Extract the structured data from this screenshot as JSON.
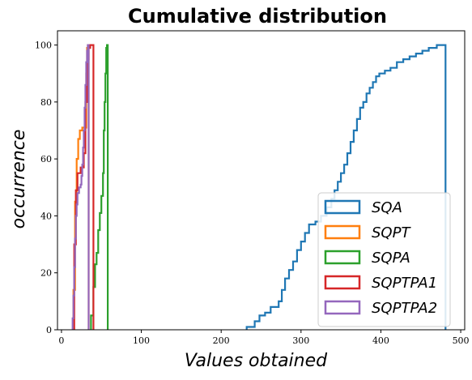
{
  "chart_data": {
    "type": "step",
    "title": "Cumulative distribution",
    "xlabel": "Values obtained",
    "ylabel": "occurrence",
    "xlim": [
      -5,
      505
    ],
    "ylim": [
      0,
      105
    ],
    "xticks": [
      0,
      100,
      200,
      300,
      400,
      500
    ],
    "yticks": [
      0,
      20,
      40,
      60,
      80,
      100
    ],
    "grid": false,
    "legend_position": "lower-right",
    "series": [
      {
        "name": "SQA",
        "color": "#1f77b4",
        "points": [
          [
            232,
            0
          ],
          [
            232,
            1
          ],
          [
            242,
            1
          ],
          [
            242,
            3
          ],
          [
            248,
            3
          ],
          [
            248,
            5
          ],
          [
            255,
            5
          ],
          [
            255,
            6
          ],
          [
            262,
            6
          ],
          [
            262,
            8
          ],
          [
            272,
            8
          ],
          [
            272,
            10
          ],
          [
            276,
            10
          ],
          [
            276,
            14
          ],
          [
            280,
            14
          ],
          [
            280,
            18
          ],
          [
            285,
            18
          ],
          [
            285,
            21
          ],
          [
            290,
            21
          ],
          [
            290,
            24
          ],
          [
            295,
            24
          ],
          [
            295,
            28
          ],
          [
            300,
            28
          ],
          [
            300,
            31
          ],
          [
            305,
            31
          ],
          [
            305,
            34
          ],
          [
            310,
            34
          ],
          [
            310,
            37
          ],
          [
            318,
            37
          ],
          [
            318,
            38
          ],
          [
            325,
            38
          ],
          [
            325,
            40
          ],
          [
            332,
            40
          ],
          [
            332,
            43
          ],
          [
            338,
            43
          ],
          [
            338,
            46
          ],
          [
            342,
            46
          ],
          [
            342,
            49
          ],
          [
            346,
            49
          ],
          [
            346,
            52
          ],
          [
            350,
            52
          ],
          [
            350,
            55
          ],
          [
            354,
            55
          ],
          [
            354,
            58
          ],
          [
            358,
            58
          ],
          [
            358,
            62
          ],
          [
            362,
            62
          ],
          [
            362,
            66
          ],
          [
            366,
            66
          ],
          [
            366,
            70
          ],
          [
            370,
            70
          ],
          [
            370,
            74
          ],
          [
            374,
            74
          ],
          [
            374,
            78
          ],
          [
            378,
            78
          ],
          [
            378,
            80
          ],
          [
            382,
            80
          ],
          [
            382,
            83
          ],
          [
            386,
            83
          ],
          [
            386,
            85
          ],
          [
            390,
            85
          ],
          [
            390,
            87
          ],
          [
            394,
            87
          ],
          [
            394,
            89
          ],
          [
            398,
            89
          ],
          [
            398,
            90
          ],
          [
            405,
            90
          ],
          [
            405,
            91
          ],
          [
            412,
            91
          ],
          [
            412,
            92
          ],
          [
            420,
            92
          ],
          [
            420,
            94
          ],
          [
            428,
            94
          ],
          [
            428,
            95
          ],
          [
            436,
            95
          ],
          [
            436,
            96
          ],
          [
            444,
            96
          ],
          [
            444,
            97
          ],
          [
            452,
            97
          ],
          [
            452,
            98
          ],
          [
            460,
            98
          ],
          [
            460,
            99
          ],
          [
            470,
            99
          ],
          [
            470,
            100
          ],
          [
            481,
            100
          ],
          [
            481,
            0
          ]
        ]
      },
      {
        "name": "SQPT",
        "color": "#ff7f0e",
        "points": [
          [
            15,
            0
          ],
          [
            15,
            14
          ],
          [
            17,
            14
          ],
          [
            17,
            45
          ],
          [
            19,
            45
          ],
          [
            19,
            60
          ],
          [
            21,
            60
          ],
          [
            21,
            67
          ],
          [
            23,
            67
          ],
          [
            23,
            70
          ],
          [
            26,
            70
          ],
          [
            26,
            71
          ],
          [
            31,
            71
          ],
          [
            31,
            90
          ],
          [
            32,
            90
          ],
          [
            32,
            99
          ],
          [
            33,
            99
          ],
          [
            33,
            100
          ],
          [
            34,
            100
          ],
          [
            34,
            0
          ]
        ]
      },
      {
        "name": "SQPA",
        "color": "#2ca02c",
        "points": [
          [
            37,
            0
          ],
          [
            37,
            5
          ],
          [
            40,
            5
          ],
          [
            40,
            15
          ],
          [
            42,
            15
          ],
          [
            42,
            23
          ],
          [
            44,
            23
          ],
          [
            44,
            27
          ],
          [
            46,
            27
          ],
          [
            46,
            35
          ],
          [
            48,
            35
          ],
          [
            48,
            41
          ],
          [
            50,
            41
          ],
          [
            50,
            47
          ],
          [
            52,
            47
          ],
          [
            52,
            55
          ],
          [
            53,
            55
          ],
          [
            53,
            70
          ],
          [
            54,
            70
          ],
          [
            54,
            80
          ],
          [
            55,
            80
          ],
          [
            55,
            90
          ],
          [
            56,
            90
          ],
          [
            56,
            99
          ],
          [
            57,
            99
          ],
          [
            57,
            100
          ],
          [
            58,
            100
          ],
          [
            58,
            0
          ]
        ]
      },
      {
        "name": "SQPTPA1",
        "color": "#d62728",
        "points": [
          [
            16,
            0
          ],
          [
            16,
            30
          ],
          [
            18,
            30
          ],
          [
            18,
            49
          ],
          [
            20,
            49
          ],
          [
            20,
            55
          ],
          [
            24,
            55
          ],
          [
            24,
            57
          ],
          [
            28,
            57
          ],
          [
            28,
            62
          ],
          [
            30,
            62
          ],
          [
            30,
            80
          ],
          [
            32,
            80
          ],
          [
            32,
            90
          ],
          [
            33,
            90
          ],
          [
            33,
            95
          ],
          [
            34,
            95
          ],
          [
            34,
            99
          ],
          [
            36,
            99
          ],
          [
            36,
            100
          ],
          [
            40,
            100
          ],
          [
            40,
            0
          ]
        ]
      },
      {
        "name": "SQPTPA2",
        "color": "#9467bd",
        "points": [
          [
            14,
            0
          ],
          [
            14,
            4
          ],
          [
            15,
            4
          ],
          [
            15,
            12
          ],
          [
            16,
            12
          ],
          [
            16,
            22
          ],
          [
            17,
            22
          ],
          [
            17,
            32
          ],
          [
            18,
            32
          ],
          [
            18,
            40
          ],
          [
            19,
            40
          ],
          [
            19,
            44
          ],
          [
            20,
            44
          ],
          [
            20,
            48
          ],
          [
            22,
            48
          ],
          [
            22,
            50
          ],
          [
            24,
            50
          ],
          [
            24,
            51
          ],
          [
            25,
            51
          ],
          [
            25,
            54
          ],
          [
            26,
            54
          ],
          [
            26,
            58
          ],
          [
            27,
            58
          ],
          [
            27,
            64
          ],
          [
            28,
            64
          ],
          [
            28,
            70
          ],
          [
            29,
            70
          ],
          [
            29,
            78
          ],
          [
            30,
            78
          ],
          [
            30,
            86
          ],
          [
            31,
            86
          ],
          [
            31,
            94
          ],
          [
            32,
            94
          ],
          [
            32,
            98
          ],
          [
            33,
            98
          ],
          [
            33,
            100
          ],
          [
            34,
            100
          ],
          [
            34,
            0
          ]
        ]
      }
    ]
  }
}
